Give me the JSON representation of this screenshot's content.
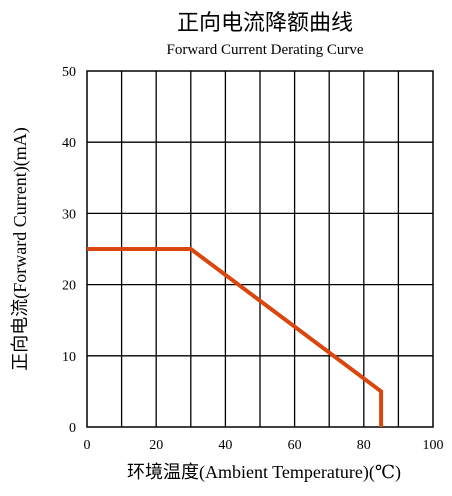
{
  "chart_data": {
    "type": "line",
    "title": "正向电流降额曲线",
    "subtitle": "Forward Current Derating Curve",
    "xlabel": "环境温度(Ambient Temperature)(℃)",
    "ylabel": "正向电流(Forward Current)(mA)",
    "xlim": [
      0,
      100
    ],
    "ylim": [
      0,
      50
    ],
    "xticks": [
      0,
      20,
      40,
      60,
      80,
      100
    ],
    "yticks": [
      0,
      10,
      20,
      30,
      40,
      50
    ],
    "xtick_labels": [
      "0",
      "20",
      "40",
      "60",
      "80",
      "100"
    ],
    "ytick_labels": [
      "0",
      "10",
      "20",
      "30",
      "40",
      "50"
    ],
    "grid": true,
    "x_grid_step": 10,
    "y_grid_step": 10,
    "series": [
      {
        "x": [
          0,
          30,
          85,
          85
        ],
        "y": [
          25,
          25,
          5,
          0
        ],
        "color": "#d9470f"
      }
    ]
  }
}
